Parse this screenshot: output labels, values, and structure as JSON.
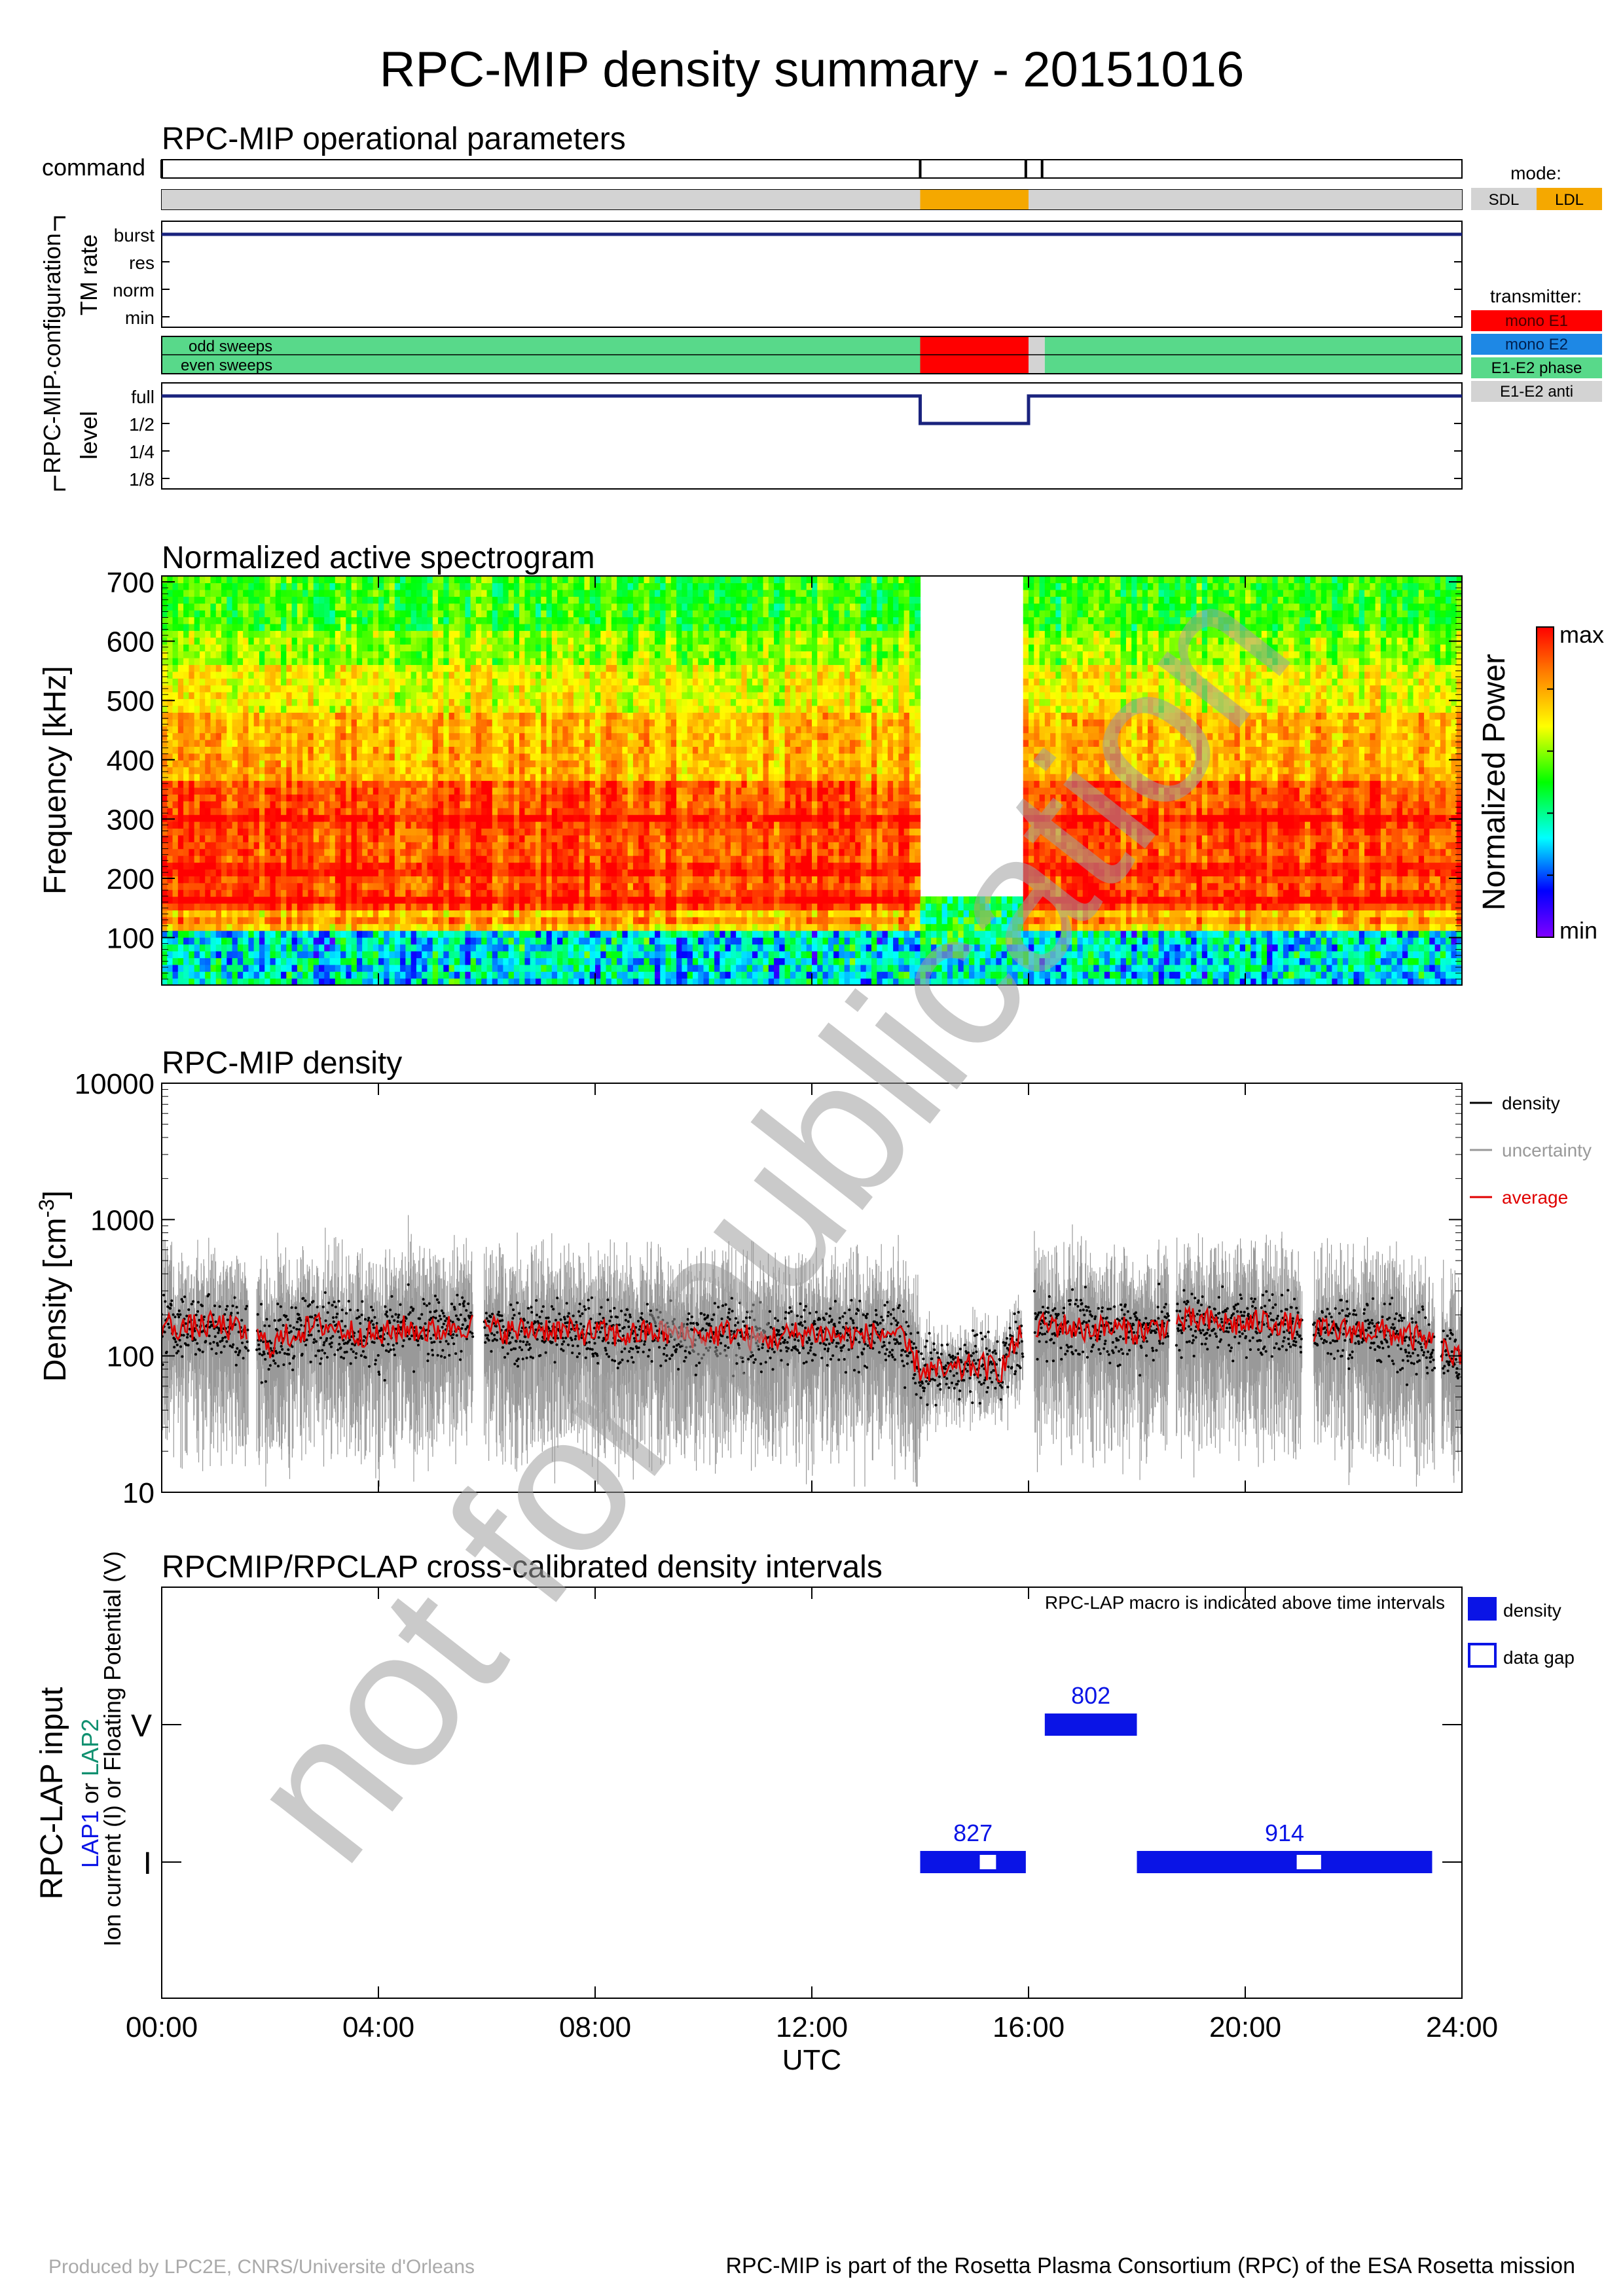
{
  "figure": {
    "title": "RPC-MIP density summary - 20151016",
    "watermark": "not for publication",
    "footer_left": "Produced by LPC2E, CNRS/Universite d'Orleans",
    "footer_right": "RPC-MIP is part of the Rosetta Plasma Consortium (RPC) of the ESA Rosetta mission"
  },
  "time_axis": {
    "range_hours": [
      0,
      24
    ],
    "ticks": [
      "00:00",
      "04:00",
      "08:00",
      "12:00",
      "16:00",
      "20:00",
      "24:00"
    ],
    "label": "UTC"
  },
  "colors": {
    "navy": "#1a237e",
    "sdl": "#d3d3d3",
    "ldl": "#f5a800",
    "mono_e1": "#ff0000",
    "mono_e2": "#1e88e5",
    "e1e2_phase": "#58d98a",
    "e1e2_anti": "#d3d3d3",
    "density": "#000000",
    "uncertainty": "#999999",
    "average": "#e00000",
    "lap_blue": "#0a14e6"
  },
  "operational": {
    "title": "RPC-MIP operational parameters",
    "command_label": "command",
    "config_label": "RPC-MIP configuration",
    "tm_rate_label": "TM rate",
    "tm_levels": [
      "burst",
      "res",
      "norm",
      "min"
    ],
    "sweep_labels": [
      "odd sweeps",
      "even sweeps"
    ],
    "level_label": "level",
    "level_levels": [
      "full",
      "1/2",
      "1/4",
      "1/8"
    ],
    "mode_label": "mode:",
    "mode_items": [
      "SDL",
      "LDL"
    ],
    "transmitter_label": "transmitter:",
    "transmitter_items": [
      "mono E1",
      "mono E2",
      "E1-E2 phase",
      "E1-E2 anti"
    ],
    "command_times_h": [
      0.0,
      14.0,
      15.95,
      16.25
    ],
    "mode_segments": [
      {
        "start": 0,
        "end": 14.0,
        "mode": "SDL"
      },
      {
        "start": 14.0,
        "end": 16.0,
        "mode": "LDL"
      },
      {
        "start": 16.0,
        "end": 24,
        "mode": "SDL"
      }
    ],
    "tm_rate_segments": [
      {
        "start": 0,
        "end": 24,
        "level": "burst"
      }
    ],
    "transmitter_segments": [
      {
        "start": 0,
        "end": 14.0,
        "tx": "E1-E2 phase"
      },
      {
        "start": 14.0,
        "end": 16.0,
        "tx": "mono E1"
      },
      {
        "start": 16.0,
        "end": 16.3,
        "tx": "E1-E2 anti"
      },
      {
        "start": 16.3,
        "end": 24,
        "tx": "E1-E2 phase"
      }
    ],
    "level_segments": [
      {
        "start": 0,
        "end": 14.0,
        "level": "full"
      },
      {
        "start": 14.0,
        "end": 16.0,
        "level": "1/2"
      },
      {
        "start": 16.0,
        "end": 24,
        "level": "full"
      }
    ]
  },
  "spectrogram": {
    "title": "Normalized active spectrogram",
    "ylabel": "Frequency [kHz]",
    "yticks": [
      100,
      200,
      300,
      400,
      500,
      600,
      700
    ],
    "ylim": [
      20,
      710
    ],
    "colorbar_label": "Normalized Power",
    "colorbar_max": "max",
    "colorbar_min": "min",
    "gap_hours": [
      14.0,
      15.9
    ],
    "ldl_max_khz": 170,
    "bright_bands_khz": [
      300,
      215,
      165,
      130
    ]
  },
  "chart_data": {
    "type": "scatter",
    "title": "RPC-MIP density",
    "xlabel": "",
    "ylabel_base": "Density [cm",
    "ylabel_exp": "-3",
    "ylabel_end": "]",
    "yscale": "log",
    "ylim": [
      10,
      10000
    ],
    "yticks": [
      "10",
      "100",
      "1000",
      "10000"
    ],
    "xlim": [
      0,
      24
    ],
    "legend": [
      "density",
      "uncertainty",
      "average"
    ],
    "legend_position": "right",
    "data_gaps_h": [
      [
        1.6,
        1.75
      ],
      [
        5.75,
        5.95
      ],
      [
        15.9,
        16.1
      ],
      [
        18.6,
        18.72
      ],
      [
        21.05,
        21.25
      ],
      [
        23.5,
        23.62
      ]
    ],
    "series": [
      {
        "name": "average",
        "x": [
          0.0,
          0.5,
          1.0,
          1.5,
          2.0,
          2.5,
          3.0,
          3.5,
          4.0,
          4.5,
          5.0,
          5.5,
          6.0,
          6.5,
          7.0,
          7.5,
          8.0,
          8.5,
          9.0,
          9.5,
          10.0,
          10.5,
          11.0,
          11.5,
          12.0,
          12.5,
          13.0,
          13.5,
          14.0,
          14.5,
          15.0,
          15.5,
          16.0,
          16.5,
          17.0,
          17.5,
          18.0,
          18.5,
          19.0,
          19.5,
          20.0,
          20.5,
          21.0,
          21.5,
          22.0,
          22.5,
          23.0,
          23.5,
          24.0
        ],
        "values": [
          170,
          160,
          170,
          150,
          120,
          150,
          170,
          150,
          140,
          160,
          150,
          170,
          160,
          150,
          160,
          150,
          150,
          140,
          150,
          145,
          140,
          150,
          130,
          140,
          150,
          140,
          140,
          150,
          80,
          75,
          85,
          80,
          160,
          170,
          155,
          160,
          150,
          165,
          180,
          175,
          170,
          180,
          160,
          150,
          155,
          150,
          140,
          120,
          90
        ]
      }
    ]
  },
  "lap": {
    "title": "RPCMIP/RPCLAP cross-calibrated density intervals",
    "ylabel_main": "RPC-LAP input",
    "ylabel_lap1": "LAP1",
    "ylabel_or": " or ",
    "ylabel_lap2": "LAP2",
    "ylabel_sub": "Ion current (I) or Floating Potential (V)",
    "note": "RPC-LAP macro is indicated above time intervals",
    "ylevels": [
      "V",
      "I"
    ],
    "legend": [
      "density",
      "data gap"
    ],
    "intervals": [
      {
        "label": "802",
        "row": "V",
        "start": 16.3,
        "end": 18.0,
        "gaps": []
      },
      {
        "label": "827",
        "row": "I",
        "start": 14.0,
        "end": 15.95,
        "gaps": [
          [
            15.1,
            15.4
          ]
        ]
      },
      {
        "label": "914",
        "row": "I",
        "start": 18.0,
        "end": 23.45,
        "gaps": [
          [
            20.95,
            21.4
          ]
        ]
      }
    ]
  }
}
